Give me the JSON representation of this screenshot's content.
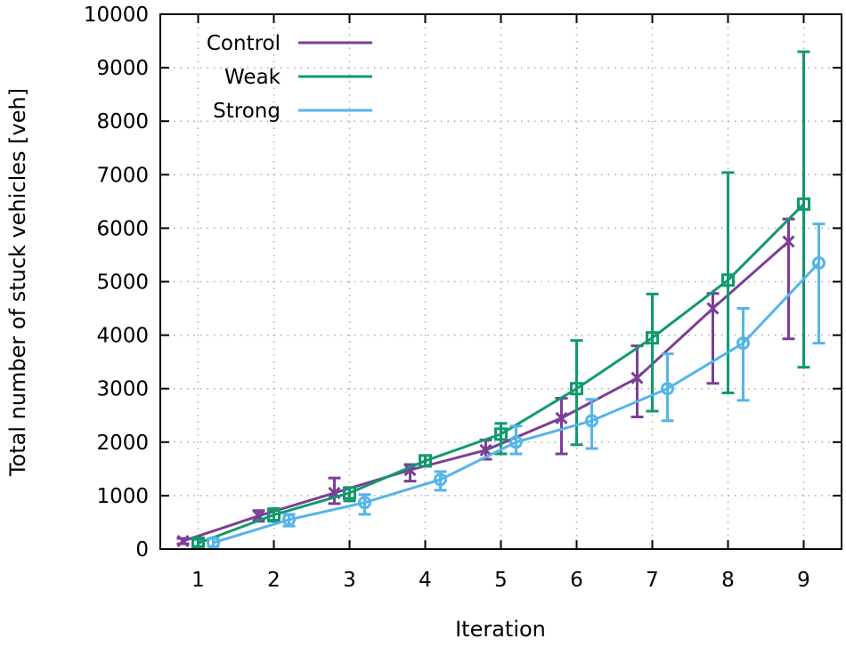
{
  "chart_data": {
    "type": "line",
    "title": "",
    "xlabel": "Iteration",
    "ylabel": "Total number of stuck vehicles [veh]",
    "xlim": [
      0.5,
      9.5
    ],
    "ylim": [
      0,
      10000
    ],
    "xticks": [
      "1",
      "2",
      "3",
      "4",
      "5",
      "6",
      "7",
      "8",
      "9"
    ],
    "yticks": [
      "0",
      "1000",
      "2000",
      "3000",
      "4000",
      "5000",
      "6000",
      "7000",
      "8000",
      "9000",
      "10000"
    ],
    "grid": true,
    "legend_position": "top-left",
    "x": [
      1,
      2,
      3,
      4,
      5,
      6,
      7,
      8,
      9
    ],
    "series": [
      {
        "name": "Control",
        "color": "#7b3f98",
        "marker": "x",
        "offset": -0.2,
        "values": [
          150,
          620,
          1050,
          1480,
          1850,
          2450,
          3200,
          4500,
          5750
        ],
        "err_low": [
          100,
          520,
          850,
          1270,
          1680,
          1780,
          2470,
          3100,
          3930
        ],
        "err_high": [
          200,
          720,
          1330,
          1580,
          2040,
          2820,
          3800,
          4780,
          6170
        ]
      },
      {
        "name": "Weak",
        "color": "#119a6e",
        "marker": "square",
        "offset": 0,
        "values": [
          110,
          640,
          1050,
          1650,
          2150,
          3000,
          3950,
          5030,
          6450
        ],
        "err_low": [
          50,
          520,
          900,
          1550,
          1780,
          1950,
          2580,
          2920,
          3400
        ],
        "err_high": [
          180,
          760,
          1150,
          1750,
          2350,
          3900,
          4770,
          7040,
          9300
        ]
      },
      {
        "name": "Strong",
        "color": "#56b4e9",
        "marker": "circle",
        "offset": 0.2,
        "values": [
          120,
          550,
          870,
          1300,
          2000,
          2400,
          3000,
          3850,
          5350
        ],
        "err_low": [
          50,
          430,
          650,
          1100,
          1780,
          1880,
          2400,
          2780,
          3850
        ],
        "err_high": [
          200,
          650,
          1020,
          1450,
          2300,
          2800,
          3650,
          4500,
          6080
        ]
      }
    ]
  }
}
